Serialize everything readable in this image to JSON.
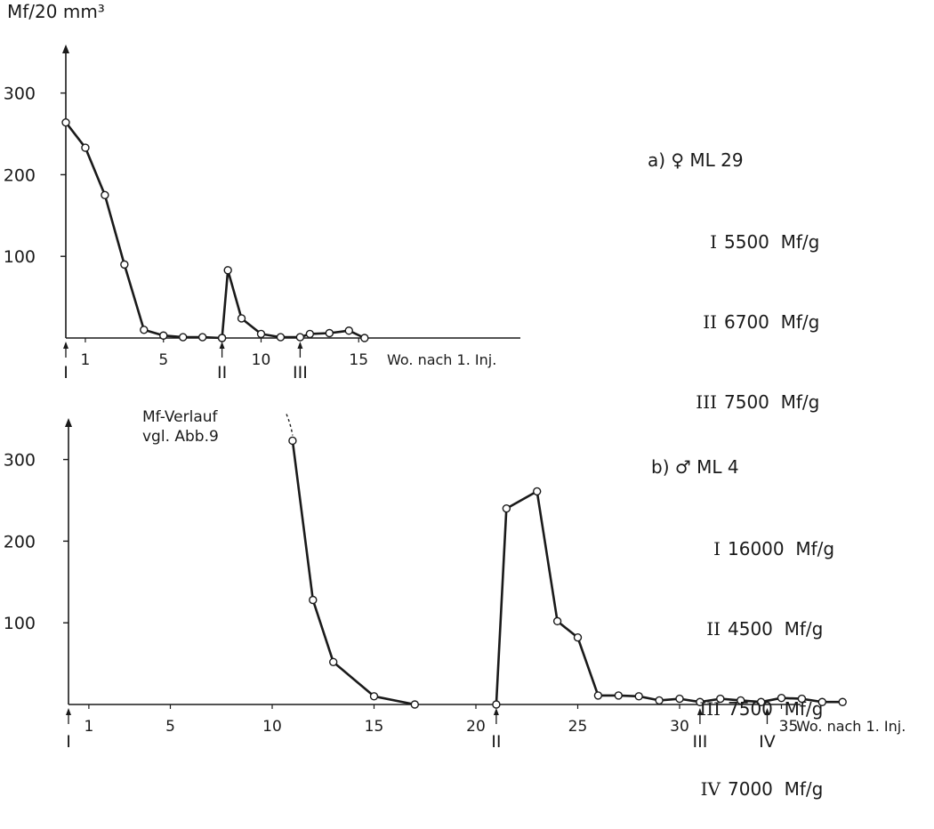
{
  "figure": {
    "y_unit": "Mf/20 mm³",
    "ink_color": "#1a1a1a"
  },
  "chart_data": [
    {
      "type": "line",
      "panel_label": "a)",
      "title": "♀ ML 29",
      "ylabel": "Mf/20 mm³",
      "xlabel": "Wo. nach 1. Inj.",
      "xlim": [
        0,
        22
      ],
      "ylim": [
        0,
        300
      ],
      "x_ticks": [
        1,
        5,
        10,
        15
      ],
      "y_ticks": [
        100,
        200,
        300
      ],
      "injections": [
        {
          "label": "I",
          "x": 0
        },
        {
          "label": "II",
          "x": 8
        },
        {
          "label": "III",
          "x": 12
        }
      ],
      "legend": [
        {
          "roman": "I",
          "value": "5500  Mf/g"
        },
        {
          "roman": "II",
          "value": "6700  Mf/g"
        },
        {
          "roman": "III",
          "value": "7500  Mf/g"
        }
      ],
      "series": [
        {
          "segments": [
            {
              "x": [
                0,
                1,
                2,
                3,
                4,
                5,
                6,
                7,
                8
              ],
              "y": [
                264,
                233,
                175,
                90,
                10,
                3,
                1,
                1,
                0
              ]
            },
            {
              "x": [
                8,
                8.3,
                9,
                10,
                11,
                12,
                12.5,
                13.5,
                14.5,
                15.3
              ],
              "y": [
                0,
                83,
                24,
                5,
                1,
                1,
                5,
                6,
                9,
                0
              ]
            }
          ]
        }
      ]
    },
    {
      "type": "line",
      "panel_label": "b)",
      "title": "♂ ML 4",
      "ylabel": "",
      "xlabel": "Wo. nach 1. Inj.",
      "xlim": [
        0,
        42
      ],
      "ylim": [
        0,
        350
      ],
      "x_ticks": [
        1,
        5,
        10,
        15,
        20,
        25,
        30,
        35
      ],
      "y_ticks": [
        100,
        200,
        300
      ],
      "injections": [
        {
          "label": "I",
          "x": 0
        },
        {
          "label": "II",
          "x": 21
        },
        {
          "label": "III",
          "x": 31
        },
        {
          "label": "IV",
          "x": 34.3
        }
      ],
      "annotation": [
        "Mf-Verlauf",
        "vgl. Abb.9"
      ],
      "legend": [
        {
          "roman": "I",
          "value": "16000  Mf/g"
        },
        {
          "roman": "II",
          "value": "4500  Mf/g"
        },
        {
          "roman": "III",
          "value": "7500  Mf/g"
        },
        {
          "roman": "IV",
          "value": "7000  Mf/g"
        }
      ],
      "series": [
        {
          "dashed_from": {
            "x": 10.7,
            "y": 360
          },
          "segments": [
            {
              "x": [
                11,
                12,
                13,
                15,
                17
              ],
              "y": [
                323,
                128,
                52,
                10,
                0
              ]
            },
            {
              "x": [
                21,
                21.5,
                23,
                24,
                25,
                26,
                27,
                28,
                29,
                30,
                31,
                32,
                33,
                34,
                35,
                36,
                37,
                38
              ],
              "y": [
                0,
                240,
                261,
                102,
                82,
                11,
                11,
                10,
                5,
                7,
                3,
                7,
                5,
                3,
                8,
                7,
                3,
                3
              ]
            }
          ]
        }
      ]
    }
  ]
}
